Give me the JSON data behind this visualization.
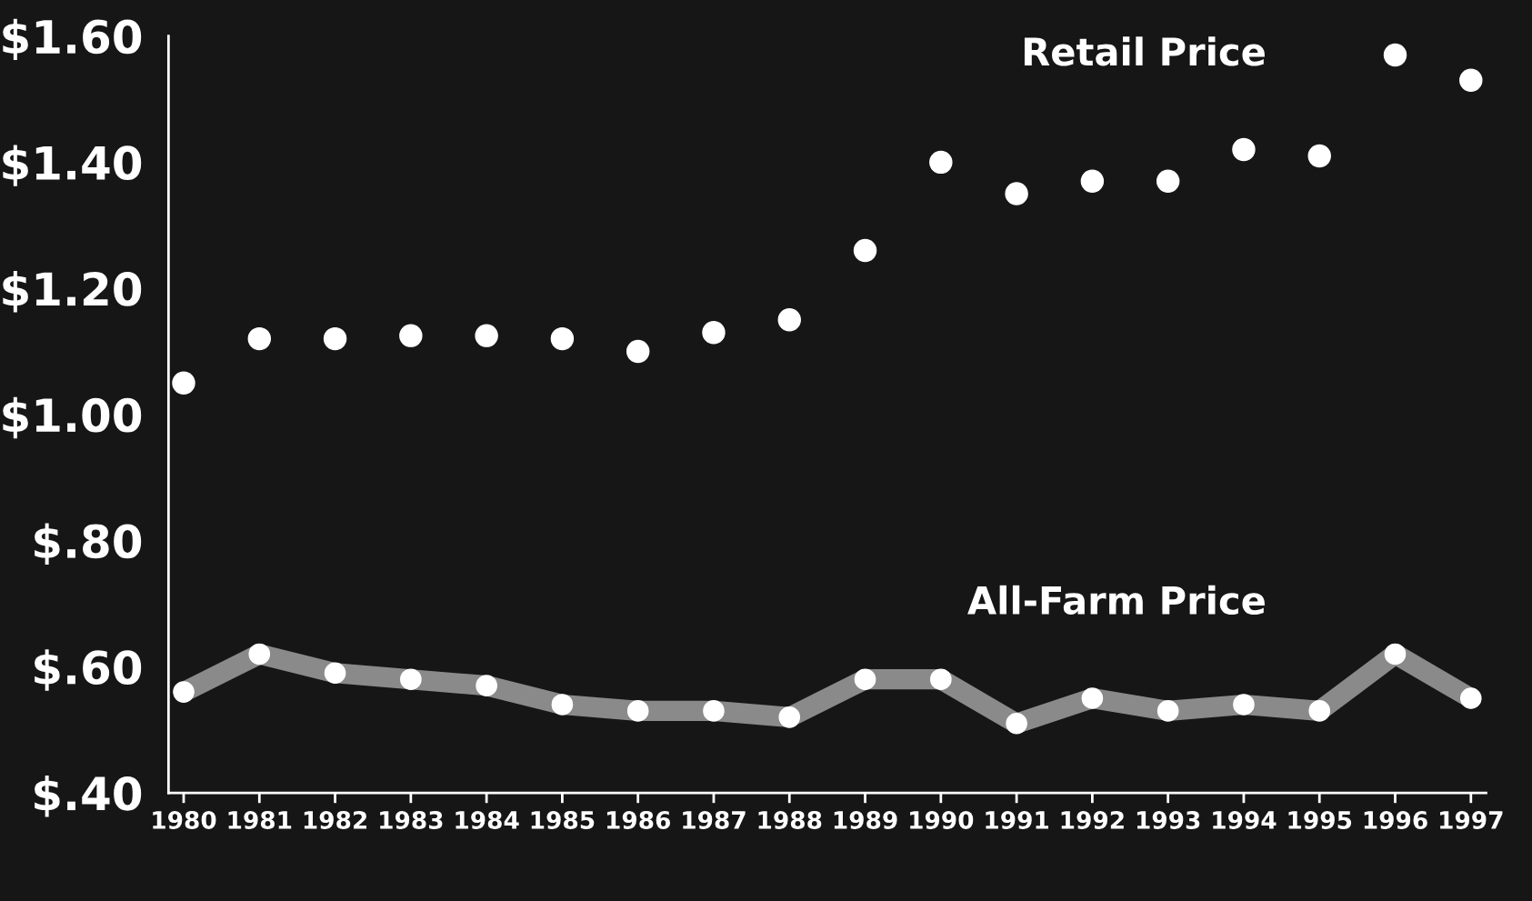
{
  "chart_data": {
    "type": "line",
    "categories": [
      "1980",
      "1981",
      "1982",
      "1983",
      "1984",
      "1985",
      "1986",
      "1987",
      "1988",
      "1989",
      "1990",
      "1991",
      "1992",
      "1993",
      "1994",
      "1995",
      "1996",
      "1997"
    ],
    "series": [
      {
        "name": "Retail Price",
        "type": "scatter",
        "color": "#ffffff",
        "values": [
          1.05,
          1.12,
          1.12,
          1.125,
          1.125,
          1.12,
          1.1,
          1.13,
          1.15,
          1.26,
          1.4,
          1.35,
          1.37,
          1.37,
          1.42,
          1.41,
          1.57,
          1.53
        ]
      },
      {
        "name": "All-Farm Price",
        "color": "#8a8a8a",
        "values": [
          0.56,
          0.62,
          0.59,
          0.58,
          0.57,
          0.54,
          0.53,
          0.53,
          0.52,
          0.58,
          0.58,
          0.51,
          0.55,
          0.53,
          0.54,
          0.53,
          0.62,
          0.55
        ]
      }
    ],
    "ylim": [
      0.4,
      1.6
    ],
    "yticks": [
      {
        "value": 0.4,
        "label": "$.40"
      },
      {
        "value": 0.6,
        "label": "$.60"
      },
      {
        "value": 0.8,
        "label": "$.80"
      },
      {
        "value": 1.0,
        "label": "$1.00"
      },
      {
        "value": 1.2,
        "label": "$1.20"
      },
      {
        "value": 1.4,
        "label": "$1.40"
      },
      {
        "value": 1.6,
        "label": "$1.60"
      }
    ],
    "marker": "circle",
    "grid": false,
    "legend": false
  }
}
